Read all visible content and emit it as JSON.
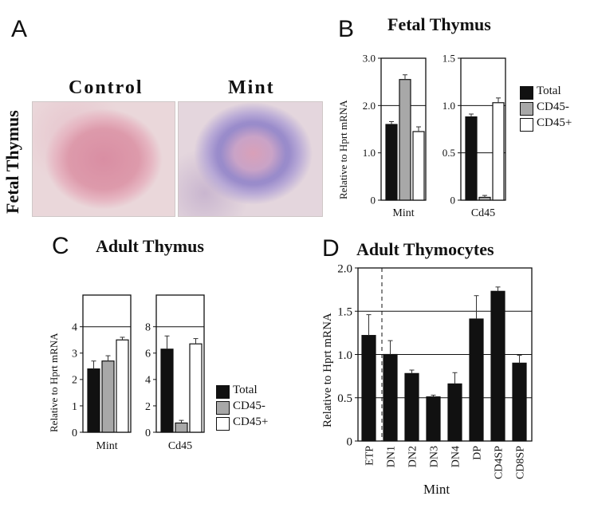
{
  "panels": {
    "a": {
      "letter": "A",
      "side_label": "Fetal Thymus",
      "micrographs": [
        {
          "label": "Control"
        },
        {
          "label": "Mint"
        }
      ]
    },
    "b": {
      "letter": "B",
      "title": "Fetal Thymus",
      "ylabel": "Relative to Hprt mRNA"
    },
    "c": {
      "letter": "C",
      "title": "Adult Thymus",
      "ylabel": "Relative to Hprt mRNA"
    },
    "d": {
      "letter": "D",
      "title": "Adult Thymocytes",
      "ylabel": "Relative to Hprt mRNA",
      "xlabel": "Mint"
    }
  },
  "legend": {
    "items": [
      {
        "label": "Total",
        "color": "#111111"
      },
      {
        "label": "CD45-",
        "color": "#a8a8a8"
      },
      {
        "label": "CD45+",
        "color": "#ffffff"
      }
    ]
  },
  "chart_data": [
    {
      "id": "b-mint",
      "type": "bar",
      "panel": "B",
      "categories": [
        "Total",
        "CD45-",
        "CD45+"
      ],
      "values": [
        1.6,
        2.55,
        1.45
      ],
      "errors": [
        0.06,
        0.1,
        0.1
      ],
      "colors": [
        "#111111",
        "#a8a8a8",
        "#ffffff"
      ],
      "ylim": [
        0,
        3.0
      ],
      "ticks": [
        "0",
        "1.0",
        "2.0",
        "3.0"
      ],
      "gridlines": [
        2.0
      ],
      "xlabel": "Mint"
    },
    {
      "id": "b-cd45",
      "type": "bar",
      "panel": "B",
      "categories": [
        "Total",
        "CD45-",
        "CD45+"
      ],
      "values": [
        0.88,
        0.03,
        1.03
      ],
      "errors": [
        0.03,
        0.02,
        0.05
      ],
      "colors": [
        "#111111",
        "#a8a8a8",
        "#ffffff"
      ],
      "ylim": [
        0,
        1.5
      ],
      "ticks": [
        "0",
        "0.5",
        "1.0",
        "1.5"
      ],
      "gridlines": [
        0.5,
        1.0
      ],
      "xlabel": "Cd45"
    },
    {
      "id": "c-mint",
      "type": "bar",
      "panel": "C",
      "categories": [
        "Total",
        "CD45-",
        "CD45+"
      ],
      "values": [
        2.4,
        2.7,
        3.5
      ],
      "errors": [
        0.3,
        0.2,
        0.1
      ],
      "colors": [
        "#111111",
        "#a8a8a8",
        "#ffffff"
      ],
      "ylim": [
        0,
        5.2
      ],
      "ticks": [
        "0",
        "1",
        "2",
        "3",
        "4"
      ],
      "gridlines": [
        4.0
      ],
      "xlabel": "Mint"
    },
    {
      "id": "c-cd45",
      "type": "bar",
      "panel": "C",
      "categories": [
        "Total",
        "CD45-",
        "CD45+"
      ],
      "values": [
        6.3,
        0.7,
        6.7
      ],
      "errors": [
        1.0,
        0.2,
        0.4
      ],
      "colors": [
        "#111111",
        "#a8a8a8",
        "#ffffff"
      ],
      "ylim": [
        0,
        10.4
      ],
      "ticks": [
        "0",
        "2",
        "4",
        "6",
        "8"
      ],
      "gridlines": [
        8.0
      ],
      "xlabel": "Cd45"
    },
    {
      "id": "d-thymocytes",
      "type": "bar",
      "panel": "D",
      "categories": [
        "ETP",
        "DN1",
        "DN2",
        "DN3",
        "DN4",
        "DP",
        "CD4SP",
        "CD8SP"
      ],
      "values": [
        1.22,
        1.0,
        0.78,
        0.51,
        0.66,
        1.41,
        1.73,
        0.9
      ],
      "errors": [
        0.24,
        0.16,
        0.04,
        0.02,
        0.13,
        0.27,
        0.05,
        0.09
      ],
      "colors": [
        "#111111"
      ],
      "ylim": [
        0,
        2.0
      ],
      "ticks": [
        "0",
        "0.5",
        "1.0",
        "1.5",
        "2.0"
      ],
      "gridlines": [
        0.5,
        1.0,
        1.5
      ],
      "xlabel": "Mint"
    }
  ]
}
